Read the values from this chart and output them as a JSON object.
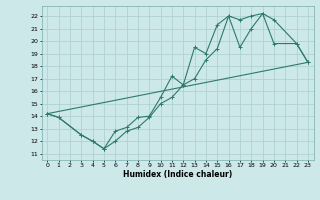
{
  "xlabel": "Humidex (Indice chaleur)",
  "xlim": [
    -0.5,
    23.5
  ],
  "ylim": [
    10.5,
    22.8
  ],
  "yticks": [
    11,
    12,
    13,
    14,
    15,
    16,
    17,
    18,
    19,
    20,
    21,
    22
  ],
  "xticks": [
    0,
    1,
    2,
    3,
    4,
    5,
    6,
    7,
    8,
    9,
    10,
    11,
    12,
    13,
    14,
    15,
    16,
    17,
    18,
    19,
    20,
    21,
    22,
    23
  ],
  "bg_color": "#cce8e8",
  "grid_color": "#aacece",
  "line_color": "#2d7a6a",
  "line1_x": [
    0,
    1,
    3,
    4,
    5,
    6,
    7,
    8,
    9,
    10,
    11,
    12,
    13,
    14,
    15,
    16,
    17,
    18,
    19,
    20,
    22,
    23
  ],
  "line1_y": [
    14.2,
    13.9,
    12.5,
    12.0,
    11.4,
    12.0,
    12.8,
    13.1,
    13.9,
    15.0,
    15.5,
    16.5,
    17.0,
    18.5,
    19.4,
    22.0,
    21.7,
    22.0,
    22.2,
    21.7,
    19.8,
    18.3
  ],
  "line2_x": [
    0,
    1,
    3,
    4,
    5,
    6,
    7,
    8,
    9,
    10,
    11,
    12,
    13,
    14,
    15,
    16,
    17,
    18,
    19,
    20,
    22,
    23
  ],
  "line2_y": [
    14.2,
    13.9,
    12.5,
    12.0,
    11.4,
    12.8,
    13.1,
    13.9,
    14.0,
    15.5,
    17.2,
    16.5,
    19.5,
    19.0,
    21.3,
    22.0,
    19.5,
    21.0,
    22.2,
    19.8,
    19.8,
    18.3
  ],
  "line3_x": [
    0,
    23
  ],
  "line3_y": [
    14.2,
    18.3
  ]
}
